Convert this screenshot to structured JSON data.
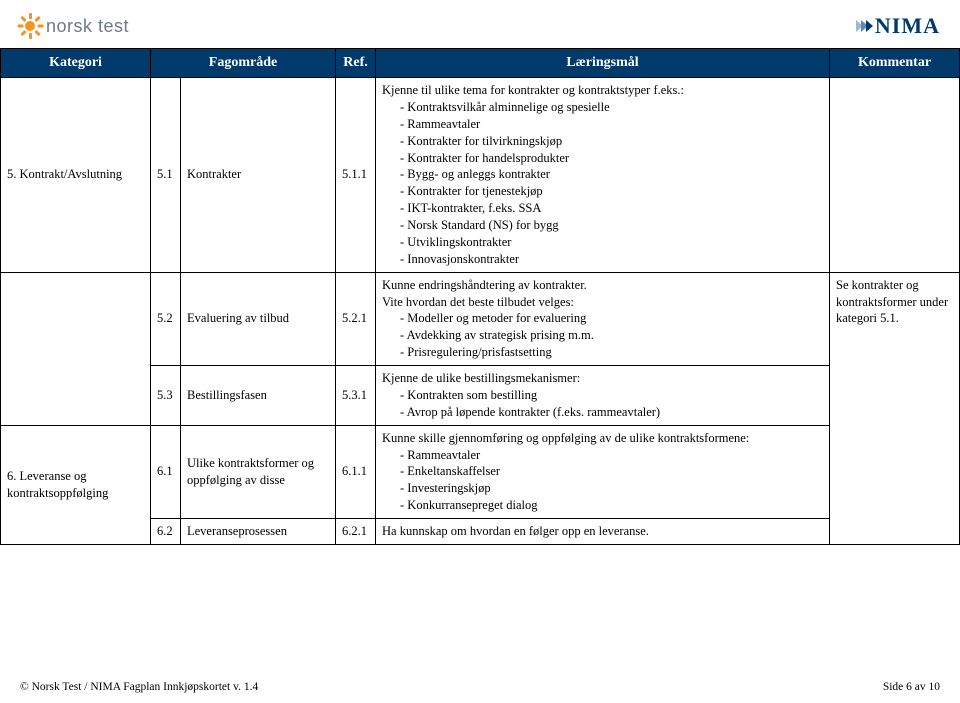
{
  "theme": {
    "header_bg": "#003a6a",
    "header_fg": "#ffffff",
    "border": "#000000",
    "page_bg": "#ffffff",
    "logo_left_color": "#6e7b7f",
    "logo_sun_color": "#f7941e",
    "nima_color": "#003a6a",
    "chevron_colors": [
      "#9db9cf",
      "#5a8ab3",
      "#003a6a"
    ]
  },
  "logo_left": "norsk test",
  "logo_right": "NIMA",
  "columns": {
    "kategori": "Kategori",
    "fagomrade": "Fagområde",
    "ref": "Ref.",
    "laeringsmal": "Læringsmål",
    "kommentar": "Kommentar"
  },
  "rows": [
    {
      "kategori": "5. Kontrakt/Avslutning",
      "fa_idx": "5.1",
      "fagomrade": "Kontrakter",
      "ref": "5.1.1",
      "laer_intro": "Kjenne til ulike tema for kontrakter og kontraktstyper f.eks.:",
      "laer_items": [
        "Kontraktsvilkår alminnelige og spesielle",
        "Rammeavtaler",
        "Kontrakter for tilvirkningskjøp",
        "Kontrakter for handelsprodukter",
        "Bygg- og anleggs kontrakter",
        "Kontrakter for tjenestekjøp",
        "IKT-kontrakter, f.eks. SSA",
        "Norsk Standard (NS) for bygg",
        "Utviklingskontrakter",
        "Innovasjonskontrakter"
      ],
      "kommentar": ""
    },
    {
      "kategori": "",
      "fa_idx": "5.2",
      "fagomrade": "Evaluering av tilbud",
      "ref": "5.2.1",
      "laer_intro_pre": "Kunne endringshåndtering av kontrakter.",
      "laer_intro": "Vite hvordan det beste tilbudet velges:",
      "laer_items": [
        "Modeller og metoder for evaluering",
        "Avdekking av strategisk prising m.m.",
        "Prisregulering/prisfastsetting"
      ],
      "kommentar": ""
    },
    {
      "kategori": "",
      "fa_idx": "5.3",
      "fagomrade": "Bestillingsfasen",
      "ref": "5.3.1",
      "laer_intro": "Kjenne de ulike bestillingsmekanismer:",
      "laer_items": [
        "Kontrakten som bestilling",
        "Avrop på løpende kontrakter (f.eks. rammeavtaler)"
      ],
      "kommentar": ""
    },
    {
      "kategori": "6. Leveranse og kontraktsoppfølging",
      "fa_idx": "6.1",
      "fagomrade": "Ulike kontraktsformer og oppfølging av disse",
      "ref": "6.1.1",
      "laer_intro": "Kunne skille gjennomføring og oppfølging av de ulike kontraktsformene:",
      "laer_items": [
        "Rammeavtaler",
        "Enkeltanskaffelser",
        "Investeringskjøp",
        "Konkurransepreget dialog"
      ],
      "kommentar": "Se kontrakter og kontraktsformer under kategori 5.1."
    },
    {
      "kategori": "",
      "fa_idx": "6.2",
      "fagomrade": "Leveranseprosessen",
      "ref": "6.2.1",
      "laer_intro": "Ha kunnskap om hvordan en følger opp en leveranse.",
      "laer_items": [],
      "kommentar": ""
    }
  ],
  "footer_left": "© Norsk Test / NIMA    Fagplan Innkjøpskortet v. 1.4",
  "footer_right": "Side 6 av 10"
}
